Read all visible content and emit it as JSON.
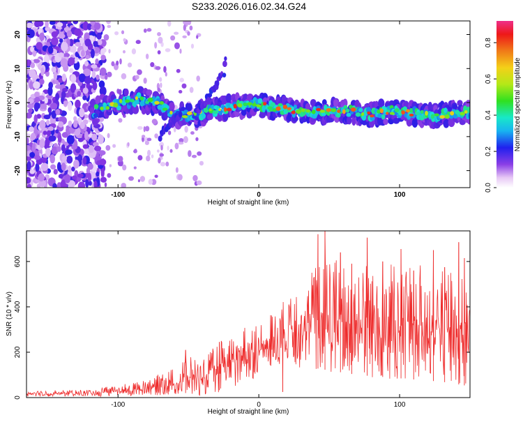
{
  "title": "S233.2026.016.02.34.G24",
  "colors": {
    "line": "#ee2b2b",
    "axis": "#000000",
    "background": "#ffffff"
  },
  "chart_data": [
    {
      "type": "heatmap",
      "name": "spectrogram",
      "xlabel": "Height of straight line (km)",
      "ylabel": "Frequency (Hz)",
      "xlim": [
        -165,
        150
      ],
      "ylim": [
        -25,
        24
      ],
      "xticks": [
        {
          "value": -100,
          "label": "-100"
        },
        {
          "value": 0,
          "label": "0"
        },
        {
          "value": 100,
          "label": "100"
        }
      ],
      "yticks": [
        {
          "value": 20,
          "label": "20"
        },
        {
          "value": 10,
          "label": "10"
        },
        {
          "value": 0,
          "label": "0"
        },
        {
          "value": -10,
          "label": "-10"
        },
        {
          "value": -20,
          "label": "-20"
        }
      ],
      "colorbar": {
        "label": "Normalized spectral amplitude",
        "range": [
          0,
          0.92
        ],
        "ticks": [
          {
            "value": 0.0,
            "label": "0.0"
          },
          {
            "value": 0.2,
            "label": "0.2"
          },
          {
            "value": 0.4,
            "label": "0.4"
          },
          {
            "value": 0.6,
            "label": "0.6"
          },
          {
            "value": 0.8,
            "label": "0.8"
          }
        ]
      },
      "ridge": {
        "description_points": [
          [
            -115,
            -1.5
          ],
          [
            -100,
            -0.5
          ],
          [
            -85,
            1
          ],
          [
            -72,
            0
          ],
          [
            -60,
            -4
          ],
          [
            -45,
            -3.5
          ],
          [
            -30,
            -2
          ],
          [
            -15,
            -1
          ],
          [
            0,
            -0.5
          ],
          [
            10,
            -1.5
          ],
          [
            20,
            -2
          ],
          [
            35,
            -3
          ],
          [
            50,
            -2.5
          ],
          [
            65,
            -2.5
          ],
          [
            80,
            -3.5
          ],
          [
            95,
            -2.5
          ],
          [
            110,
            -3
          ],
          [
            125,
            -4
          ],
          [
            140,
            -3
          ],
          [
            150,
            -3
          ]
        ],
        "branch_points": [
          [
            -45,
            -3
          ],
          [
            -35,
            2
          ],
          [
            -25,
            9
          ],
          [
            -23,
            13
          ]
        ],
        "branch2_points": [
          [
            -55,
            -3
          ],
          [
            -65,
            -7
          ],
          [
            -70,
            -10
          ]
        ]
      }
    },
    {
      "type": "line",
      "name": "snr",
      "xlabel": "Height of straight line (km)",
      "ylabel": "SNR (10 * v/v)",
      "xlim": [
        -165,
        150
      ],
      "ylim": [
        0,
        735
      ],
      "xticks": [
        {
          "value": -100,
          "label": "-100"
        },
        {
          "value": 0,
          "label": "0"
        },
        {
          "value": 100,
          "label": "100"
        }
      ],
      "yticks": [
        {
          "value": 0,
          "label": "0"
        },
        {
          "value": 200,
          "label": "200"
        },
        {
          "value": 400,
          "label": "400"
        },
        {
          "value": 600,
          "label": "600"
        }
      ],
      "envelope": [
        {
          "x": -165,
          "low": 5,
          "high": 30
        },
        {
          "x": -120,
          "low": 5,
          "high": 35
        },
        {
          "x": -95,
          "low": 5,
          "high": 60
        },
        {
          "x": -80,
          "low": 10,
          "high": 80
        },
        {
          "x": -60,
          "low": 10,
          "high": 130
        },
        {
          "x": -50,
          "low": 10,
          "high": 190
        },
        {
          "x": -40,
          "low": 10,
          "high": 160
        },
        {
          "x": -30,
          "low": 20,
          "high": 240
        },
        {
          "x": -15,
          "low": 40,
          "high": 300
        },
        {
          "x": 0,
          "low": 100,
          "high": 330
        },
        {
          "x": 10,
          "low": 140,
          "high": 380
        },
        {
          "x": 18,
          "low": 150,
          "high": 430
        },
        {
          "x": 30,
          "low": 130,
          "high": 560
        },
        {
          "x": 50,
          "low": 110,
          "high": 620
        },
        {
          "x": 70,
          "low": 90,
          "high": 600
        },
        {
          "x": 90,
          "low": 80,
          "high": 610
        },
        {
          "x": 110,
          "low": 70,
          "high": 580
        },
        {
          "x": 130,
          "low": 60,
          "high": 600
        },
        {
          "x": 150,
          "low": 40,
          "high": 520
        }
      ],
      "spikes": [
        {
          "x": -52,
          "y": 210
        },
        {
          "x": -28,
          "y": 245
        },
        {
          "x": 17,
          "y": 25
        },
        {
          "x": 42,
          "y": 720
        },
        {
          "x": 47,
          "y": 735
        },
        {
          "x": 58,
          "y": 640
        },
        {
          "x": 66,
          "y": 590
        },
        {
          "x": 77,
          "y": 705
        },
        {
          "x": 88,
          "y": 600
        },
        {
          "x": 101,
          "y": 655
        },
        {
          "x": 110,
          "y": 560
        },
        {
          "x": 124,
          "y": 650
        },
        {
          "x": 132,
          "y": 575
        },
        {
          "x": 142,
          "y": 685
        },
        {
          "x": 146,
          "y": 615
        }
      ]
    }
  ]
}
